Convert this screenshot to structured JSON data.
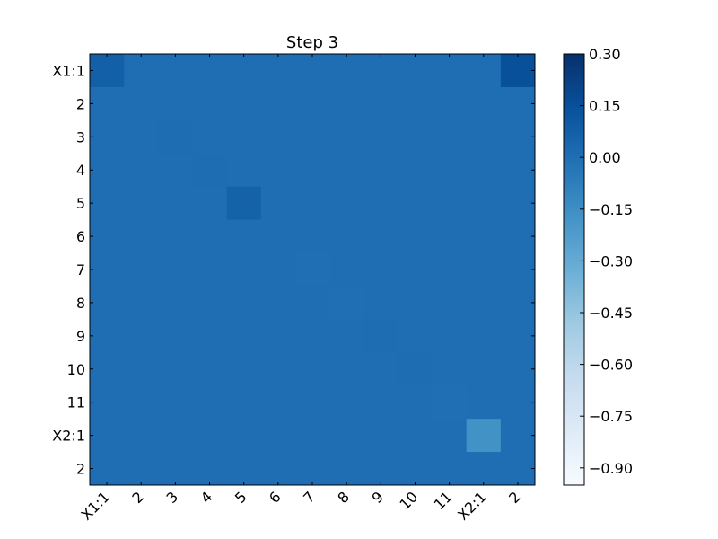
{
  "chart_data": {
    "type": "heatmap",
    "title": "Step 3",
    "colormap": "Blues",
    "x_tick_labels": [
      "X1:1",
      "2",
      "3",
      "4",
      "5",
      "6",
      "7",
      "8",
      "9",
      "10",
      "11",
      "X2:1",
      "2"
    ],
    "y_tick_labels": [
      "X1:1",
      "2",
      "3",
      "4",
      "5",
      "6",
      "7",
      "8",
      "9",
      "10",
      "11",
      "X2:1",
      "2"
    ],
    "color_range": [
      -0.95,
      0.3
    ],
    "colorbar_ticks": [
      "0.30",
      "0.15",
      "0.00",
      "−0.15",
      "−0.30",
      "−0.45",
      "−0.60",
      "−0.75",
      "−0.90"
    ],
    "colorbar_tick_values": [
      0.3,
      0.15,
      0.0,
      -0.15,
      -0.3,
      -0.45,
      -0.6,
      -0.75,
      -0.9
    ],
    "matrix": [
      [
        0.07,
        0.0,
        0.0,
        0.0,
        0.0,
        0.0,
        0.0,
        0.0,
        0.0,
        0.0,
        0.0,
        0.0,
        0.15
      ],
      [
        0.0,
        0.0,
        0.0,
        0.0,
        0.0,
        0.0,
        0.0,
        0.0,
        0.0,
        0.0,
        0.0,
        0.0,
        0.0
      ],
      [
        0.0,
        0.0,
        0.005,
        0.0,
        0.0,
        0.0,
        0.0,
        0.0,
        0.0,
        0.0,
        0.0,
        0.0,
        0.0
      ],
      [
        0.0,
        0.0,
        0.0,
        0.005,
        0.0,
        0.0,
        0.0,
        0.0,
        0.0,
        0.0,
        0.0,
        0.0,
        0.0
      ],
      [
        0.0,
        0.0,
        0.0,
        0.0,
        0.06,
        0.0,
        0.0,
        0.0,
        0.0,
        0.0,
        0.0,
        0.0,
        0.0
      ],
      [
        0.0,
        0.0,
        0.0,
        0.0,
        0.0,
        0.0,
        0.0,
        0.0,
        0.0,
        0.0,
        0.0,
        0.0,
        0.0
      ],
      [
        0.0,
        0.0,
        0.0,
        0.0,
        0.0,
        0.0,
        -0.005,
        0.0,
        0.0,
        0.0,
        0.0,
        0.0,
        0.0
      ],
      [
        0.0,
        0.0,
        0.0,
        0.0,
        0.0,
        0.0,
        0.0,
        -0.005,
        0.0,
        0.0,
        0.0,
        0.0,
        0.0
      ],
      [
        0.0,
        0.0,
        0.0,
        0.0,
        0.0,
        0.0,
        0.0,
        0.0,
        0.005,
        0.0,
        0.0,
        0.0,
        0.0
      ],
      [
        0.0,
        0.0,
        0.0,
        0.0,
        0.0,
        0.0,
        0.0,
        0.0,
        0.0,
        0.005,
        0.0,
        0.0,
        0.0
      ],
      [
        0.0,
        0.0,
        0.0,
        0.0,
        0.0,
        0.0,
        0.0,
        0.0,
        0.0,
        0.0,
        -0.005,
        0.0,
        0.0
      ],
      [
        0.0,
        0.0,
        0.0,
        0.0,
        0.0,
        0.0,
        0.0,
        0.0,
        0.0,
        0.0,
        0.0,
        -0.17,
        0.0
      ],
      [
        0.0,
        0.0,
        0.0,
        0.0,
        0.0,
        0.0,
        0.0,
        0.0,
        0.0,
        0.0,
        0.0,
        0.0,
        0.0
      ]
    ]
  }
}
